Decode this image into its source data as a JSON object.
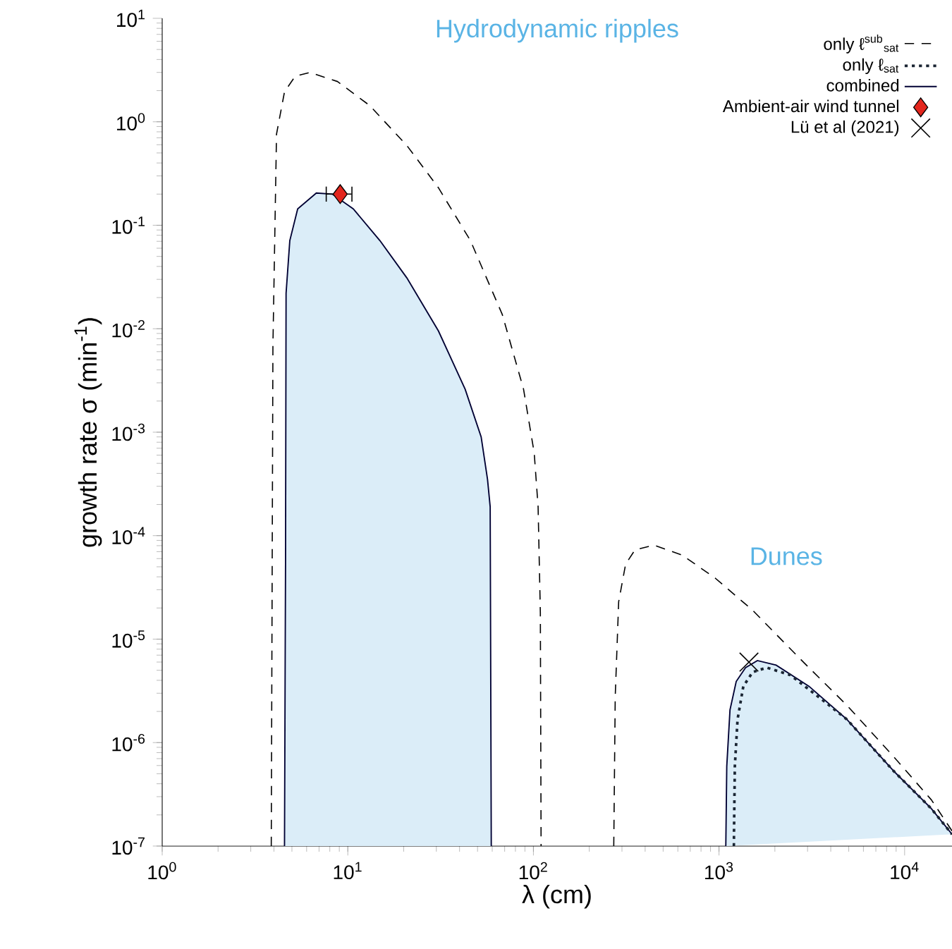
{
  "chart_data": {
    "type": "line",
    "xlabel": "λ (cm)",
    "ylabel": "growth rate σ (min$^{-1}$)",
    "annotations": [
      "Hydrodynamic ripples",
      "Dunes"
    ],
    "log": "xy",
    "legend": "top right",
    "grid": false,
    "xlim": [
      1,
      18000
    ],
    "ylim": [
      1e-07,
      10
    ],
    "xticks": [
      {
        "value": 1,
        "label": "10$^{0}$"
      },
      {
        "value": 10,
        "label": "10$^{1}$"
      },
      {
        "value": 100,
        "label": "10$^{2}$"
      },
      {
        "value": 1000,
        "label": "10$^{3}$"
      },
      {
        "value": 10000,
        "label": "10$^{4}$"
      }
    ],
    "yticks": [
      {
        "value": 1e-07,
        "label": "10$^{-7}$"
      },
      {
        "value": 1e-06,
        "label": "10$^{-6}$"
      },
      {
        "value": 1e-05,
        "label": "10$^{-5}$"
      },
      {
        "value": 0.0001,
        "label": "10$^{-4}$"
      },
      {
        "value": 0.001,
        "label": "10$^{-3}$"
      },
      {
        "value": 0.01,
        "label": "10$^{-2}$"
      },
      {
        "value": 0.1,
        "label": "10$^{-1}$"
      },
      {
        "value": 1,
        "label": "10$^{0}$"
      },
      {
        "value": 10,
        "label": "10$^{1}$"
      }
    ],
    "series": [
      {
        "name": "only ℓ$^{sub}$$_{sat}$",
        "line_style": "dashed",
        "color": "#000000",
        "x": [
          3.87,
          3.95,
          4.13,
          4.56,
          5.2,
          6.25,
          8.8,
          13.1,
          20.8,
          30.8,
          45.8,
          68,
          88.5,
          101,
          106,
          109,
          110,
          190,
          271,
          276,
          288,
          314,
          353,
          446,
          632,
          952,
          1518,
          2723,
          4877,
          8735,
          13930,
          18000
        ],
        "values": [
          1e-07,
          0.0067,
          0.76,
          1.95,
          2.75,
          3.0,
          2.45,
          1.44,
          0.59,
          0.23,
          0.071,
          0.0137,
          0.0026,
          0.00063,
          0.00019,
          1.8e-05,
          1e-07,
          null,
          1e-07,
          2.8e-06,
          2.3e-05,
          5.3e-05,
          7.3e-05,
          8.1e-05,
          6.5e-05,
          3.9e-05,
          1.9e-05,
          6.5e-06,
          2.3e-06,
          7.3e-07,
          2.8e-07,
          1.4e-07
        ]
      },
      {
        "name": "only ℓ$_{sat}$",
        "line_style": "dotted",
        "color": "#1a2533",
        "x": [
          1202,
          1217,
          1259,
          1352,
          1518,
          1807,
          2421,
          3640,
          4877,
          8735,
          13930,
          18000
        ],
        "values": [
          1e-07,
          5.9e-07,
          1.68e-06,
          3.5e-06,
          4.8e-06,
          5.3e-06,
          4.5e-06,
          2.55e-06,
          1.68e-06,
          5.3e-07,
          2.3e-07,
          1.3e-07
        ]
      },
      {
        "name": "combined",
        "type": "area",
        "line_style": "solid",
        "color": "#dbedf8",
        "x": [
          4.56,
          4.62,
          4.65,
          4.87,
          5.37,
          6.77,
          8.25,
          10.7,
          14.9,
          20.8,
          30.8,
          42.9,
          52.3,
          56.6,
          58.5,
          59.3,
          300,
          1088,
          1101,
          1146,
          1238,
          1390,
          1610,
          2032,
          3055,
          4877,
          8735,
          13930,
          18000
        ],
        "values": [
          1e-07,
          5.9e-05,
          0.022,
          0.071,
          0.144,
          0.205,
          0.2,
          0.144,
          0.071,
          0.031,
          0.0095,
          0.0026,
          0.0009,
          0.00035,
          0.00019,
          1e-07,
          null,
          1e-07,
          5.9e-07,
          2.07e-06,
          3.9e-06,
          5.3e-06,
          6.2e-06,
          5.6e-06,
          3.5e-06,
          1.68e-06,
          5.3e-07,
          2.3e-07,
          1.3e-07
        ]
      },
      {
        "name": "Ambient-air wind tunnel",
        "type": "scatter",
        "marker": "diamond",
        "color": "#e3261d",
        "x": [
          9.1
        ],
        "values": [
          0.2
        ],
        "xerrors": [
          [
            7.6,
            10.6
          ]
        ]
      },
      {
        "name": "Lü et al (2021)",
        "type": "scatter",
        "marker": "cross",
        "color": "#000000",
        "x": [
          1450
        ],
        "values": [
          6e-06
        ]
      }
    ]
  }
}
